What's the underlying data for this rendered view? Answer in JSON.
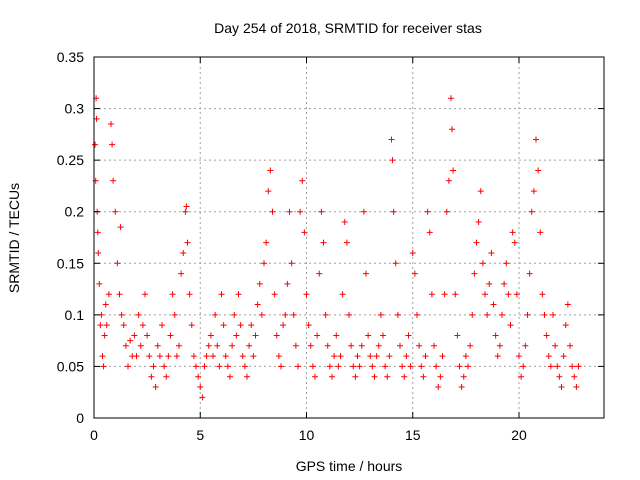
{
  "chart_data": {
    "type": "scatter",
    "title": "Day 254 of 2018, SRMTID for receiver stas",
    "xlabel": "GPS time / hours",
    "ylabel": "SRMTID / TECUs",
    "xlim": [
      0,
      24
    ],
    "ylim": [
      0,
      0.35
    ],
    "xticks": [
      0,
      5,
      10,
      15,
      20
    ],
    "xtick_labels": [
      "0",
      "5",
      "10",
      "15",
      "20"
    ],
    "yticks": [
      0,
      0.05,
      0.1,
      0.15,
      0.2,
      0.25,
      0.3,
      0.35
    ],
    "ytick_labels": [
      "0",
      "0.05",
      "0.1",
      "0.15",
      "0.2",
      "0.25",
      "0.3",
      "0.35"
    ],
    "grid": true,
    "legend": "none",
    "marker": "+",
    "color": "#ff0000",
    "series": [
      {
        "points": [
          [
            0.05,
            0.265
          ],
          [
            0.08,
            0.23
          ],
          [
            0.1,
            0.31
          ],
          [
            0.12,
            0.29
          ],
          [
            0.15,
            0.2
          ],
          [
            0.18,
            0.18
          ],
          [
            0.2,
            0.16
          ],
          [
            0.25,
            0.13
          ],
          [
            0.3,
            0.09
          ],
          [
            0.35,
            0.1
          ],
          [
            0.4,
            0.06
          ],
          [
            0.45,
            0.05
          ],
          [
            0.5,
            0.08
          ],
          [
            0.55,
            0.11
          ],
          [
            0.6,
            0.09
          ],
          [
            0.7,
            0.12
          ],
          [
            0.8,
            0.285
          ],
          [
            0.85,
            0.265
          ],
          [
            0.9,
            0.23
          ],
          [
            1.0,
            0.2
          ],
          [
            1.1,
            0.15
          ],
          [
            1.2,
            0.12
          ],
          [
            1.25,
            0.185
          ],
          [
            1.3,
            0.1
          ],
          [
            1.4,
            0.09
          ],
          [
            1.5,
            0.07
          ],
          [
            1.6,
            0.05
          ],
          [
            1.7,
            0.075
          ],
          [
            1.8,
            0.06
          ],
          [
            1.9,
            0.08
          ],
          [
            2.0,
            0.06
          ],
          [
            2.1,
            0.1
          ],
          [
            2.2,
            0.07
          ],
          [
            2.3,
            0.09
          ],
          [
            2.4,
            0.12
          ],
          [
            2.5,
            0.08
          ],
          [
            2.6,
            0.06
          ],
          [
            2.7,
            0.04
          ],
          [
            2.8,
            0.05
          ],
          [
            2.9,
            0.03
          ],
          [
            3.0,
            0.07
          ],
          [
            3.1,
            0.06
          ],
          [
            3.2,
            0.09
          ],
          [
            3.3,
            0.05
          ],
          [
            3.4,
            0.04
          ],
          [
            3.5,
            0.06
          ],
          [
            3.6,
            0.08
          ],
          [
            3.7,
            0.12
          ],
          [
            3.8,
            0.1
          ],
          [
            3.9,
            0.06
          ],
          [
            4.0,
            0.07
          ],
          [
            4.1,
            0.14
          ],
          [
            4.2,
            0.16
          ],
          [
            4.3,
            0.2
          ],
          [
            4.35,
            0.205
          ],
          [
            4.4,
            0.17
          ],
          [
            4.5,
            0.12
          ],
          [
            4.6,
            0.09
          ],
          [
            4.7,
            0.06
          ],
          [
            4.8,
            0.05
          ],
          [
            4.9,
            0.04
          ],
          [
            5.0,
            0.03
          ],
          [
            5.1,
            0.02
          ],
          [
            5.2,
            0.05
          ],
          [
            5.3,
            0.06
          ],
          [
            5.4,
            0.07
          ],
          [
            5.5,
            0.08
          ],
          [
            5.6,
            0.06
          ],
          [
            5.7,
            0.1
          ],
          [
            5.8,
            0.07
          ],
          [
            5.9,
            0.05
          ],
          [
            6.0,
            0.12
          ],
          [
            6.1,
            0.09
          ],
          [
            6.2,
            0.06
          ],
          [
            6.3,
            0.05
          ],
          [
            6.4,
            0.04
          ],
          [
            6.5,
            0.07
          ],
          [
            6.6,
            0.1
          ],
          [
            6.7,
            0.08
          ],
          [
            6.8,
            0.12
          ],
          [
            6.9,
            0.09
          ],
          [
            7.0,
            0.06
          ],
          [
            7.1,
            0.05
          ],
          [
            7.2,
            0.04
          ],
          [
            7.3,
            0.07
          ],
          [
            7.4,
            0.09
          ],
          [
            7.5,
            0.06
          ],
          [
            7.6,
            0.08
          ],
          [
            7.7,
            0.11
          ],
          [
            7.8,
            0.13
          ],
          [
            7.9,
            0.1
          ],
          [
            8.0,
            0.15
          ],
          [
            8.1,
            0.17
          ],
          [
            8.2,
            0.22
          ],
          [
            8.3,
            0.24
          ],
          [
            8.4,
            0.2
          ],
          [
            8.5,
            0.12
          ],
          [
            8.6,
            0.08
          ],
          [
            8.7,
            0.06
          ],
          [
            8.8,
            0.05
          ],
          [
            8.9,
            0.09
          ],
          [
            9.0,
            0.1
          ],
          [
            9.1,
            0.13
          ],
          [
            9.2,
            0.2
          ],
          [
            9.3,
            0.15
          ],
          [
            9.4,
            0.1
          ],
          [
            9.5,
            0.07
          ],
          [
            9.6,
            0.05
          ],
          [
            9.7,
            0.2
          ],
          [
            9.8,
            0.23
          ],
          [
            9.9,
            0.18
          ],
          [
            10.0,
            0.12
          ],
          [
            10.1,
            0.09
          ],
          [
            10.2,
            0.07
          ],
          [
            10.3,
            0.05
          ],
          [
            10.4,
            0.04
          ],
          [
            10.5,
            0.08
          ],
          [
            10.6,
            0.14
          ],
          [
            10.7,
            0.2
          ],
          [
            10.8,
            0.17
          ],
          [
            10.9,
            0.1
          ],
          [
            11.0,
            0.07
          ],
          [
            11.1,
            0.05
          ],
          [
            11.2,
            0.04
          ],
          [
            11.3,
            0.06
          ],
          [
            11.4,
            0.08
          ],
          [
            11.5,
            0.05
          ],
          [
            11.6,
            0.06
          ],
          [
            11.7,
            0.12
          ],
          [
            11.8,
            0.19
          ],
          [
            11.9,
            0.17
          ],
          [
            12.0,
            0.1
          ],
          [
            12.1,
            0.07
          ],
          [
            12.2,
            0.05
          ],
          [
            12.3,
            0.04
          ],
          [
            12.4,
            0.06
          ],
          [
            12.5,
            0.05
          ],
          [
            12.6,
            0.07
          ],
          [
            12.7,
            0.2
          ],
          [
            12.8,
            0.14
          ],
          [
            12.9,
            0.08
          ],
          [
            13.0,
            0.06
          ],
          [
            13.1,
            0.05
          ],
          [
            13.2,
            0.04
          ],
          [
            13.3,
            0.06
          ],
          [
            13.4,
            0.07
          ],
          [
            13.5,
            0.1
          ],
          [
            13.6,
            0.08
          ],
          [
            13.7,
            0.05
          ],
          [
            13.8,
            0.04
          ],
          [
            13.9,
            0.06
          ],
          [
            14.0,
            0.27
          ],
          [
            14.05,
            0.25
          ],
          [
            14.1,
            0.2
          ],
          [
            14.2,
            0.15
          ],
          [
            14.3,
            0.1
          ],
          [
            14.4,
            0.07
          ],
          [
            14.5,
            0.05
          ],
          [
            14.6,
            0.04
          ],
          [
            14.7,
            0.06
          ],
          [
            14.8,
            0.08
          ],
          [
            14.9,
            0.05
          ],
          [
            15.0,
            0.16
          ],
          [
            15.1,
            0.14
          ],
          [
            15.2,
            0.1
          ],
          [
            15.3,
            0.07
          ],
          [
            15.4,
            0.05
          ],
          [
            15.5,
            0.04
          ],
          [
            15.6,
            0.06
          ],
          [
            15.7,
            0.2
          ],
          [
            15.8,
            0.18
          ],
          [
            15.9,
            0.12
          ],
          [
            16.0,
            0.07
          ],
          [
            16.1,
            0.05
          ],
          [
            16.2,
            0.03
          ],
          [
            16.3,
            0.04
          ],
          [
            16.4,
            0.06
          ],
          [
            16.5,
            0.12
          ],
          [
            16.6,
            0.2
          ],
          [
            16.7,
            0.23
          ],
          [
            16.8,
            0.31
          ],
          [
            16.85,
            0.28
          ],
          [
            16.9,
            0.24
          ],
          [
            17.0,
            0.12
          ],
          [
            17.1,
            0.08
          ],
          [
            17.2,
            0.05
          ],
          [
            17.3,
            0.03
          ],
          [
            17.4,
            0.04
          ],
          [
            17.5,
            0.06
          ],
          [
            17.6,
            0.05
          ],
          [
            17.7,
            0.07
          ],
          [
            17.8,
            0.1
          ],
          [
            17.9,
            0.14
          ],
          [
            18.0,
            0.17
          ],
          [
            18.1,
            0.19
          ],
          [
            18.2,
            0.22
          ],
          [
            18.3,
            0.15
          ],
          [
            18.4,
            0.12
          ],
          [
            18.5,
            0.1
          ],
          [
            18.6,
            0.13
          ],
          [
            18.7,
            0.16
          ],
          [
            18.8,
            0.11
          ],
          [
            18.9,
            0.08
          ],
          [
            19.0,
            0.06
          ],
          [
            19.1,
            0.07
          ],
          [
            19.2,
            0.1
          ],
          [
            19.3,
            0.13
          ],
          [
            19.4,
            0.15
          ],
          [
            19.5,
            0.12
          ],
          [
            19.6,
            0.09
          ],
          [
            19.7,
            0.18
          ],
          [
            19.8,
            0.17
          ],
          [
            19.9,
            0.12
          ],
          [
            20.0,
            0.06
          ],
          [
            20.1,
            0.04
          ],
          [
            20.2,
            0.05
          ],
          [
            20.3,
            0.07
          ],
          [
            20.4,
            0.1
          ],
          [
            20.5,
            0.14
          ],
          [
            20.6,
            0.2
          ],
          [
            20.7,
            0.22
          ],
          [
            20.8,
            0.27
          ],
          [
            20.9,
            0.24
          ],
          [
            21.0,
            0.18
          ],
          [
            21.1,
            0.12
          ],
          [
            21.2,
            0.1
          ],
          [
            21.3,
            0.08
          ],
          [
            21.4,
            0.06
          ],
          [
            21.5,
            0.05
          ],
          [
            21.6,
            0.1
          ],
          [
            21.7,
            0.07
          ],
          [
            21.8,
            0.05
          ],
          [
            21.9,
            0.04
          ],
          [
            22.0,
            0.03
          ],
          [
            22.1,
            0.06
          ],
          [
            22.2,
            0.09
          ],
          [
            22.3,
            0.11
          ],
          [
            22.4,
            0.07
          ],
          [
            22.5,
            0.05
          ],
          [
            22.6,
            0.04
          ],
          [
            22.7,
            0.03
          ],
          [
            22.8,
            0.05
          ]
        ]
      }
    ]
  }
}
